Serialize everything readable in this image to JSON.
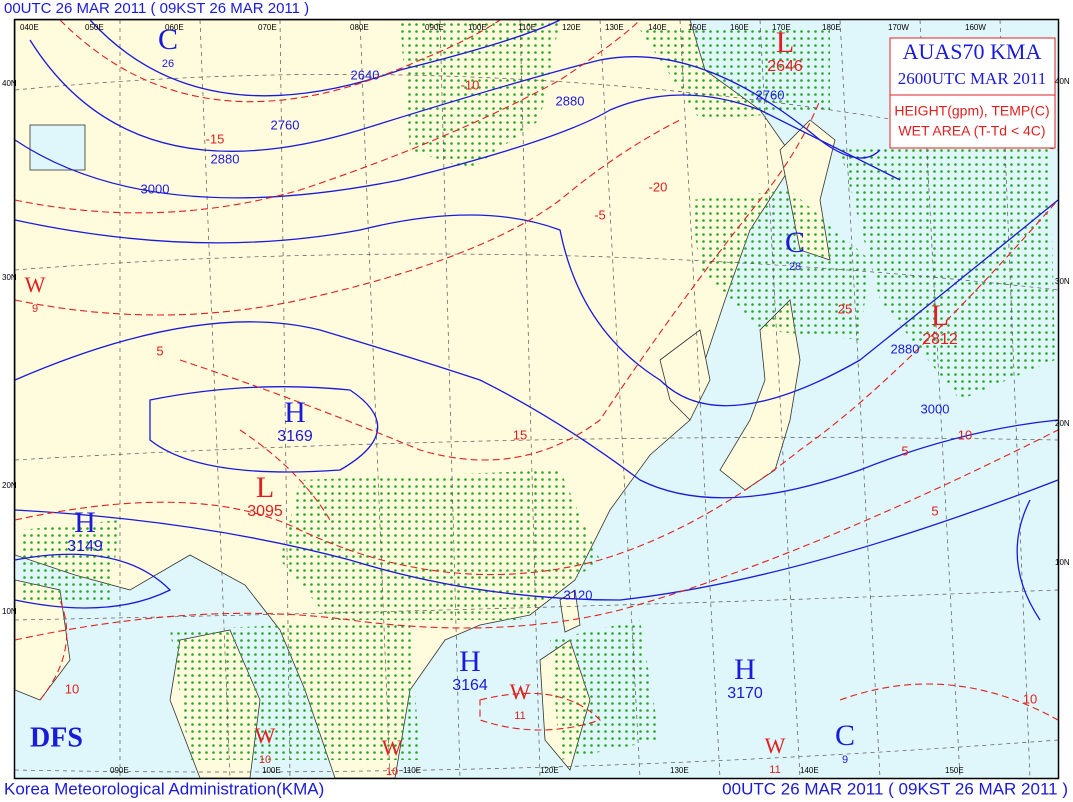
{
  "header": {
    "top": "00UTC 26 MAR 2011 ( 09KST 26 MAR 2011 )"
  },
  "legend": {
    "title": "AUAS70 KMA",
    "time": "2600UTC MAR 2011",
    "line1": "HEIGHT(gpm), TEMP(C)",
    "line2": "WET AREA (T-Td < 4C)"
  },
  "footer": {
    "agency": "Korea Meteorological Administration(KMA)",
    "time": "00UTC 26 MAR 2011 ( 09KST 26 MAR 2011 )"
  },
  "logo": "DFS",
  "top_longitudes": [
    "040E",
    "050E",
    "060E",
    "070E",
    "080E",
    "090E",
    "100E",
    "110E",
    "120E",
    "130E",
    "140E",
    "150E",
    "160E",
    "170E",
    "180E",
    "170W",
    "160W"
  ],
  "bottom_longitudes": [
    "090E",
    "100E",
    "110E",
    "120E",
    "130E",
    "140E",
    "150E"
  ],
  "left_latitudes": [
    "40N",
    "30N",
    "20N",
    "10N"
  ],
  "right_latitudes": [
    "40N",
    "30N",
    "20N",
    "10N"
  ],
  "systems": [
    {
      "symbol": "H",
      "label": 3169
    },
    {
      "symbol": "L",
      "label": 3095
    },
    {
      "symbol": "H",
      "label": 3149
    },
    {
      "symbol": "W",
      "label": 9
    },
    {
      "symbol": "L",
      "label": 2812
    },
    {
      "symbol": "C",
      "label": 28
    },
    {
      "symbol": "H",
      "label": 3164
    },
    {
      "symbol": "H",
      "label": 3170
    },
    {
      "symbol": "W",
      "label": 11
    },
    {
      "symbol": "W",
      "label": 11
    },
    {
      "symbol": "C",
      "label": 9
    },
    {
      "symbol": "W",
      "label": 10
    },
    {
      "symbol": "W",
      "label": 10
    },
    {
      "symbol": "L",
      "label": 2646
    },
    {
      "symbol": "C",
      "label": 26
    }
  ],
  "height_labels": [
    2640,
    2760,
    2880,
    3000,
    2880,
    2880,
    3000,
    3120,
    2760
  ],
  "temp_labels": [
    -20,
    -15,
    -10,
    -5,
    5,
    25,
    5,
    10,
    5,
    10,
    10,
    15
  ]
}
